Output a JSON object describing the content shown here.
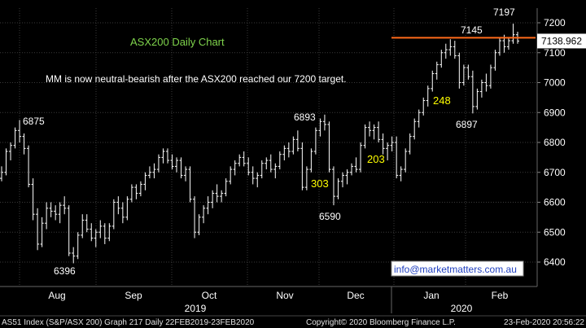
{
  "colors": {
    "background": "#000000",
    "bars": "#ffffff",
    "grid": "#3a3a3a",
    "resistance_line": "#ff6a1a",
    "title": "#7fd44c",
    "annotation_yellow": "#ffff00",
    "price_tag_bg": "#ffffff",
    "email_bg": "#ffffff",
    "email_text": "#1f3fbf"
  },
  "chart_data": {
    "type": "ohlc",
    "title": "ASX200 Daily Chart",
    "subtitle": "MM is now neutral-bearish after the ASX200 reached our 7200 target.",
    "ylim": [
      6320,
      7240
    ],
    "yticks": [
      6400,
      6500,
      6600,
      6700,
      6800,
      6900,
      7000,
      7100,
      7200
    ],
    "ytick_labels": [
      "6400",
      "6500",
      "6600",
      "6700",
      "6800",
      "6900",
      "7000",
      "7100",
      "7200"
    ],
    "grid": true,
    "x_months": [
      "Aug",
      "Sep",
      "Oct",
      "Nov",
      "Dec",
      "Jan",
      "Feb"
    ],
    "x_years": [
      "2019",
      "2020"
    ],
    "last_price": "7138.962",
    "resistance_level": 7150,
    "point_labels": [
      "6875",
      "6396",
      "6893",
      "6590",
      "7145",
      "6897",
      "7197"
    ],
    "swing_labels": [
      "303",
      "203",
      "248"
    ],
    "bars": [
      [
        6680,
        6720,
        6670,
        6700
      ],
      [
        6700,
        6780,
        6690,
        6770
      ],
      [
        6770,
        6800,
        6740,
        6790
      ],
      [
        6790,
        6850,
        6780,
        6840
      ],
      [
        6840,
        6875,
        6800,
        6820
      ],
      [
        6820,
        6830,
        6760,
        6780
      ],
      [
        6780,
        6790,
        6650,
        6660
      ],
      [
        6660,
        6680,
        6540,
        6560
      ],
      [
        6560,
        6580,
        6440,
        6460
      ],
      [
        6460,
        6550,
        6450,
        6530
      ],
      [
        6530,
        6600,
        6510,
        6580
      ],
      [
        6580,
        6600,
        6550,
        6570
      ],
      [
        6570,
        6590,
        6540,
        6560
      ],
      [
        6560,
        6600,
        6530,
        6590
      ],
      [
        6590,
        6620,
        6560,
        6580
      ],
      [
        6580,
        6590,
        6420,
        6430
      ],
      [
        6430,
        6450,
        6396,
        6420
      ],
      [
        6420,
        6500,
        6410,
        6490
      ],
      [
        6490,
        6560,
        6480,
        6540
      ],
      [
        6540,
        6560,
        6500,
        6510
      ],
      [
        6510,
        6530,
        6470,
        6480
      ],
      [
        6480,
        6510,
        6450,
        6500
      ],
      [
        6500,
        6540,
        6480,
        6520
      ],
      [
        6520,
        6530,
        6460,
        6480
      ],
      [
        6480,
        6530,
        6470,
        6520
      ],
      [
        6520,
        6610,
        6510,
        6600
      ],
      [
        6600,
        6620,
        6560,
        6580
      ],
      [
        6580,
        6600,
        6530,
        6550
      ],
      [
        6550,
        6620,
        6540,
        6610
      ],
      [
        6610,
        6660,
        6600,
        6650
      ],
      [
        6650,
        6660,
        6610,
        6630
      ],
      [
        6630,
        6670,
        6620,
        6660
      ],
      [
        6660,
        6700,
        6640,
        6690
      ],
      [
        6690,
        6720,
        6680,
        6700
      ],
      [
        6700,
        6730,
        6680,
        6710
      ],
      [
        6710,
        6760,
        6700,
        6750
      ],
      [
        6750,
        6780,
        6730,
        6770
      ],
      [
        6770,
        6780,
        6730,
        6740
      ],
      [
        6740,
        6760,
        6710,
        6720
      ],
      [
        6720,
        6750,
        6700,
        6740
      ],
      [
        6740,
        6750,
        6680,
        6690
      ],
      [
        6690,
        6720,
        6670,
        6710
      ],
      [
        6710,
        6720,
        6600,
        6610
      ],
      [
        6610,
        6620,
        6480,
        6500
      ],
      [
        6500,
        6560,
        6490,
        6550
      ],
      [
        6550,
        6590,
        6530,
        6580
      ],
      [
        6580,
        6620,
        6560,
        6600
      ],
      [
        6600,
        6640,
        6580,
        6630
      ],
      [
        6630,
        6660,
        6600,
        6620
      ],
      [
        6620,
        6640,
        6600,
        6630
      ],
      [
        6630,
        6680,
        6620,
        6670
      ],
      [
        6670,
        6720,
        6660,
        6710
      ],
      [
        6710,
        6740,
        6690,
        6730
      ],
      [
        6730,
        6760,
        6720,
        6750
      ],
      [
        6750,
        6770,
        6720,
        6730
      ],
      [
        6730,
        6750,
        6690,
        6700
      ],
      [
        6700,
        6720,
        6660,
        6680
      ],
      [
        6680,
        6700,
        6650,
        6690
      ],
      [
        6690,
        6740,
        6680,
        6730
      ],
      [
        6730,
        6750,
        6710,
        6740
      ],
      [
        6740,
        6760,
        6700,
        6710
      ],
      [
        6710,
        6730,
        6680,
        6720
      ],
      [
        6720,
        6770,
        6710,
        6760
      ],
      [
        6760,
        6790,
        6740,
        6780
      ],
      [
        6780,
        6800,
        6750,
        6770
      ],
      [
        6770,
        6820,
        6760,
        6810
      ],
      [
        6810,
        6840,
        6770,
        6780
      ],
      [
        6780,
        6800,
        6640,
        6650
      ],
      [
        6650,
        6720,
        6640,
        6710
      ],
      [
        6710,
        6780,
        6700,
        6770
      ],
      [
        6770,
        6850,
        6760,
        6840
      ],
      [
        6840,
        6880,
        6820,
        6870
      ],
      [
        6870,
        6893,
        6840,
        6860
      ],
      [
        6860,
        6870,
        6700,
        6710
      ],
      [
        6710,
        6720,
        6590,
        6620
      ],
      [
        6620,
        6680,
        6610,
        6670
      ],
      [
        6670,
        6700,
        6650,
        6690
      ],
      [
        6690,
        6710,
        6660,
        6700
      ],
      [
        6700,
        6730,
        6690,
        6720
      ],
      [
        6720,
        6750,
        6700,
        6710
      ],
      [
        6710,
        6800,
        6700,
        6790
      ],
      [
        6790,
        6860,
        6780,
        6850
      ],
      [
        6850,
        6870,
        6820,
        6840
      ],
      [
        6840,
        6860,
        6810,
        6850
      ],
      [
        6850,
        6870,
        6800,
        6810
      ],
      [
        6810,
        6830,
        6760,
        6780
      ],
      [
        6780,
        6800,
        6740,
        6790
      ],
      [
        6790,
        6820,
        6770,
        6800
      ],
      [
        6800,
        6820,
        6680,
        6690
      ],
      [
        6690,
        6720,
        6670,
        6710
      ],
      [
        6710,
        6780,
        6700,
        6770
      ],
      [
        6770,
        6830,
        6760,
        6820
      ],
      [
        6820,
        6880,
        6810,
        6870
      ],
      [
        6870,
        6910,
        6850,
        6900
      ],
      [
        6900,
        6950,
        6890,
        6940
      ],
      [
        6940,
        6990,
        6920,
        6980
      ],
      [
        6980,
        7040,
        6970,
        7030
      ],
      [
        7030,
        7070,
        7010,
        7060
      ],
      [
        7060,
        7110,
        7050,
        7100
      ],
      [
        7100,
        7130,
        7080,
        7110
      ],
      [
        7110,
        7145,
        7090,
        7120
      ],
      [
        7120,
        7140,
        7080,
        7090
      ],
      [
        7090,
        7100,
        6980,
        7000
      ],
      [
        7000,
        7060,
        6990,
        7050
      ],
      [
        7050,
        7060,
        7010,
        7020
      ],
      [
        7020,
        7040,
        6897,
        6920
      ],
      [
        6920,
        6980,
        6910,
        6970
      ],
      [
        6970,
        7010,
        6950,
        7000
      ],
      [
        7000,
        7030,
        6970,
        6990
      ],
      [
        6990,
        7060,
        6980,
        7050
      ],
      [
        7050,
        7110,
        7040,
        7100
      ],
      [
        7100,
        7150,
        7090,
        7140
      ],
      [
        7140,
        7160,
        7100,
        7120
      ],
      [
        7120,
        7150,
        7110,
        7140
      ],
      [
        7140,
        7197,
        7130,
        7160
      ],
      [
        7160,
        7170,
        7130,
        7139
      ]
    ]
  },
  "footer": {
    "left": "AS51 Index (S&P/ASX 200)  Graph 217  Daily 22FEB2019-23FEB2020",
    "copyright": "Copyright© 2020 Bloomberg Finance L.P.",
    "timestamp": "23-Feb-2020 20:56:22"
  },
  "email": "info@marketmatters.com.au"
}
